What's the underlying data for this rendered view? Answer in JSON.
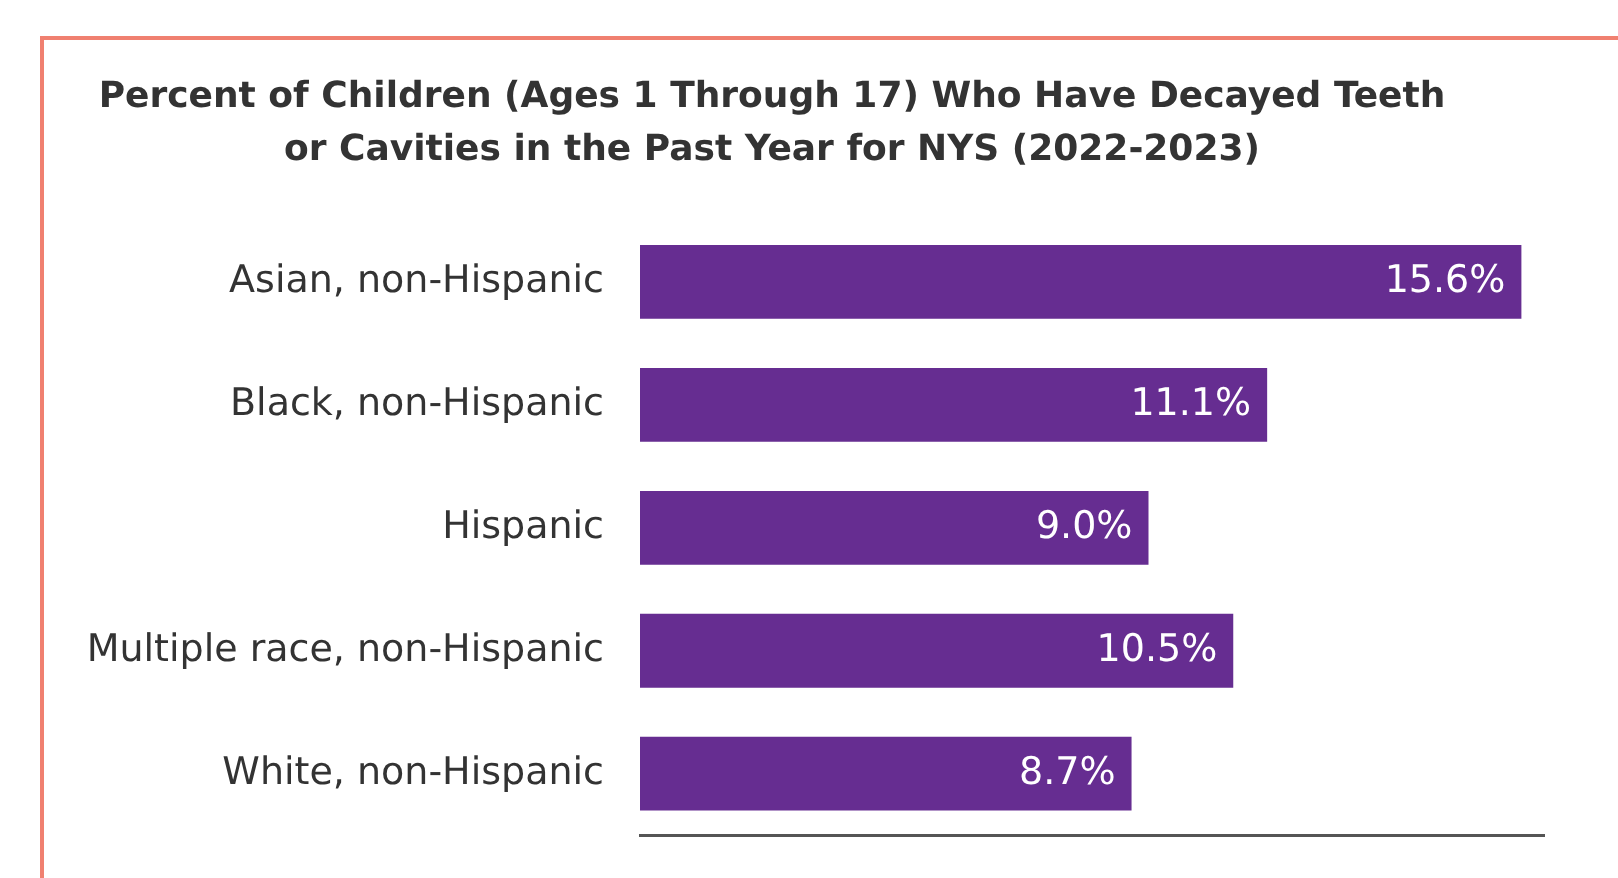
{
  "chart_data": {
    "type": "bar",
    "orientation": "horizontal",
    "title": "Percent of Children (Ages 1 Through 17) Who Have Decayed Teeth\nor Cavities in the Past Year for NYS (2022-2023)",
    "categories": [
      "Asian, non-Hispanic",
      "Black, non-Hispanic",
      "Hispanic",
      "Multiple race, non-Hispanic",
      "White, non-Hispanic"
    ],
    "values": [
      15.6,
      11.1,
      9.0,
      10.5,
      8.7
    ],
    "value_labels": [
      "15.6%",
      "11.1%",
      "9.0%",
      "10.5%",
      "8.7%"
    ],
    "color": "#662d91",
    "xlim": [
      0,
      16
    ],
    "grid": false,
    "legend": false,
    "tick_labels": "y"
  }
}
